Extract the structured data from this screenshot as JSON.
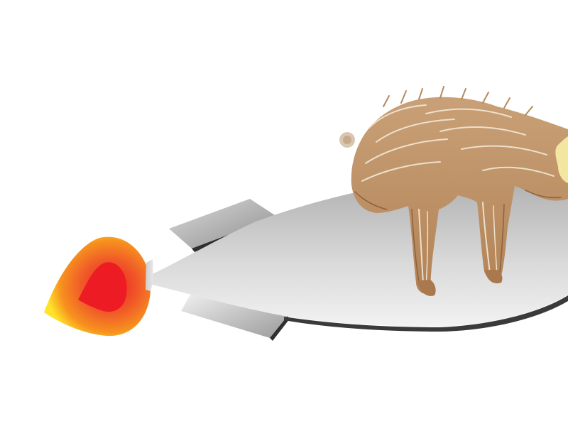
{
  "scene": {
    "background": "#ffffff",
    "subjects": [
      "rocket",
      "flame",
      "furry-animal"
    ]
  },
  "colors": {
    "flame_outer": "#ffe32a",
    "flame_mid": "#f7931e",
    "flame_core": "#ed1c24",
    "rocket_light": "#f2f2f2",
    "rocket_dark": "#a6a6a6",
    "rocket_edge": "#3a3a3a",
    "fur_base": "#c49a6c",
    "fur_dark": "#8b6240",
    "fur_light": "#ede0cc"
  }
}
